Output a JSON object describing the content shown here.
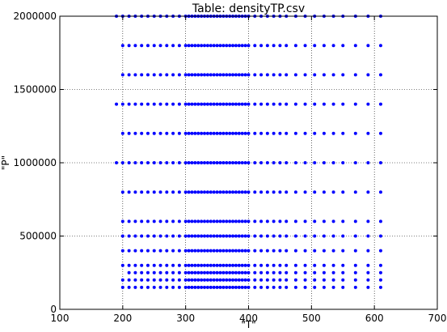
{
  "chart_data": {
    "type": "scatter",
    "title": "Table: densityTP.csv",
    "xlabel": "\"T\"",
    "ylabel": "\"P\"",
    "xlim": [
      100,
      700
    ],
    "ylim": [
      0,
      2000000
    ],
    "x_ticks": [
      "100",
      "200",
      "300",
      "400",
      "500",
      "600",
      "700"
    ],
    "y_ticks": [
      "0",
      "500000",
      "1000000",
      "1500000",
      "2000000"
    ],
    "grid": "dotted",
    "marker_color": "#0000ff",
    "rows": [
      {
        "p": 2000000,
        "t_min": 190,
        "t_max": 610
      },
      {
        "p": 1800000,
        "t_min": 200,
        "t_max": 610
      },
      {
        "p": 1600000,
        "t_min": 195,
        "t_max": 610
      },
      {
        "p": 1400000,
        "t_min": 190,
        "t_max": 610
      },
      {
        "p": 1200000,
        "t_min": 198,
        "t_max": 610
      },
      {
        "p": 1000000,
        "t_min": 190,
        "t_max": 610
      },
      {
        "p": 800000,
        "t_min": 195,
        "t_max": 610
      },
      {
        "p": 600000,
        "t_min": 198,
        "t_max": 610
      },
      {
        "p": 500000,
        "t_min": 192,
        "t_max": 610
      },
      {
        "p": 400000,
        "t_min": 196,
        "t_max": 610
      },
      {
        "p": 300000,
        "t_min": 199,
        "t_max": 610
      },
      {
        "p": 250000,
        "t_min": 203,
        "t_max": 610
      },
      {
        "p": 200000,
        "t_min": 196,
        "t_max": 610
      },
      {
        "p": 150000,
        "t_min": 200,
        "t_max": 610
      }
    ],
    "t_values_dense": [
      190,
      200,
      210,
      220,
      230,
      240,
      250,
      260,
      270,
      280,
      290,
      300,
      305,
      310,
      315,
      320,
      325,
      330,
      335,
      340,
      345,
      350,
      355,
      360,
      365,
      370,
      375,
      380,
      385,
      390,
      395,
      400,
      410,
      420,
      430,
      440,
      450,
      460,
      475,
      490,
      505,
      520,
      535,
      550,
      570,
      590,
      610
    ]
  }
}
